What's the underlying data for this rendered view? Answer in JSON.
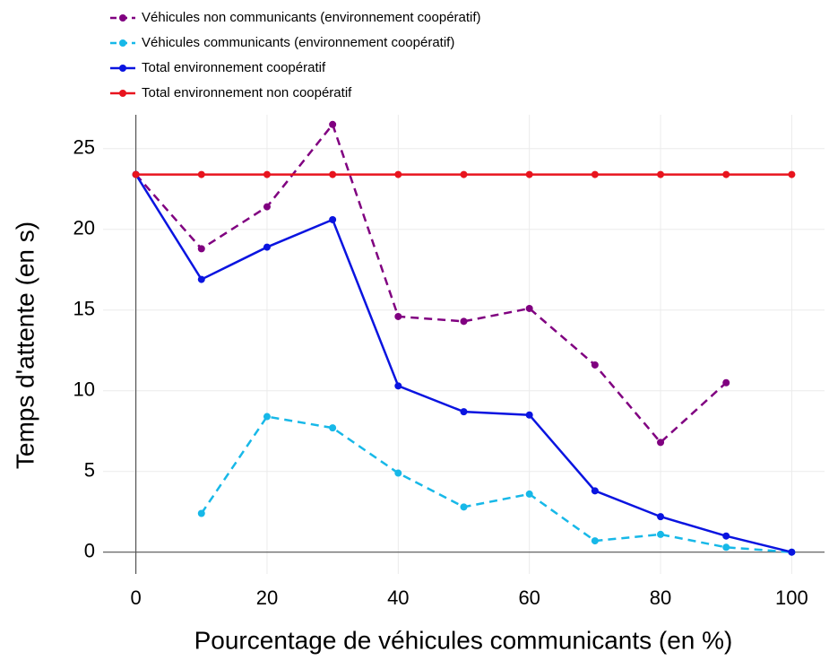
{
  "chart_data": {
    "type": "line",
    "x_label": "Pourcentage de véhicules communicants (en %)",
    "y_label": "Temps d'attente (en s)",
    "x": [
      0,
      10,
      20,
      30,
      40,
      50,
      60,
      70,
      80,
      90,
      100
    ],
    "series": [
      {
        "name": "Véhicules non communicants (environnement coopératif)",
        "color": "#800080",
        "dashed": true,
        "values": [
          23.4,
          18.8,
          21.4,
          26.5,
          14.6,
          14.3,
          15.1,
          11.6,
          6.8,
          10.5,
          null
        ]
      },
      {
        "name": "Véhicules communicants (environnement coopératif)",
        "color": "#17b8e8",
        "dashed": true,
        "values": [
          null,
          2.4,
          8.4,
          7.7,
          4.9,
          2.8,
          3.6,
          0.7,
          1.1,
          0.3,
          0
        ]
      },
      {
        "name": "Total environnement coopératif",
        "color": "#0a14e0",
        "dashed": false,
        "values": [
          23.4,
          16.9,
          18.9,
          20.6,
          10.3,
          8.7,
          8.5,
          3.8,
          2.2,
          1.0,
          0
        ]
      },
      {
        "name": "Total environnement non coopératif",
        "color": "#e8141e",
        "dashed": false,
        "values": [
          23.4,
          23.4,
          23.4,
          23.4,
          23.4,
          23.4,
          23.4,
          23.4,
          23.4,
          23.4,
          23.4
        ]
      }
    ],
    "xlim": [
      -5,
      105
    ],
    "xticks": [
      0,
      20,
      40,
      60,
      80,
      100
    ],
    "ylim": [
      -1.35,
      27.1
    ],
    "yticks": [
      0,
      5,
      10,
      15,
      20,
      25
    ],
    "grid": true
  }
}
